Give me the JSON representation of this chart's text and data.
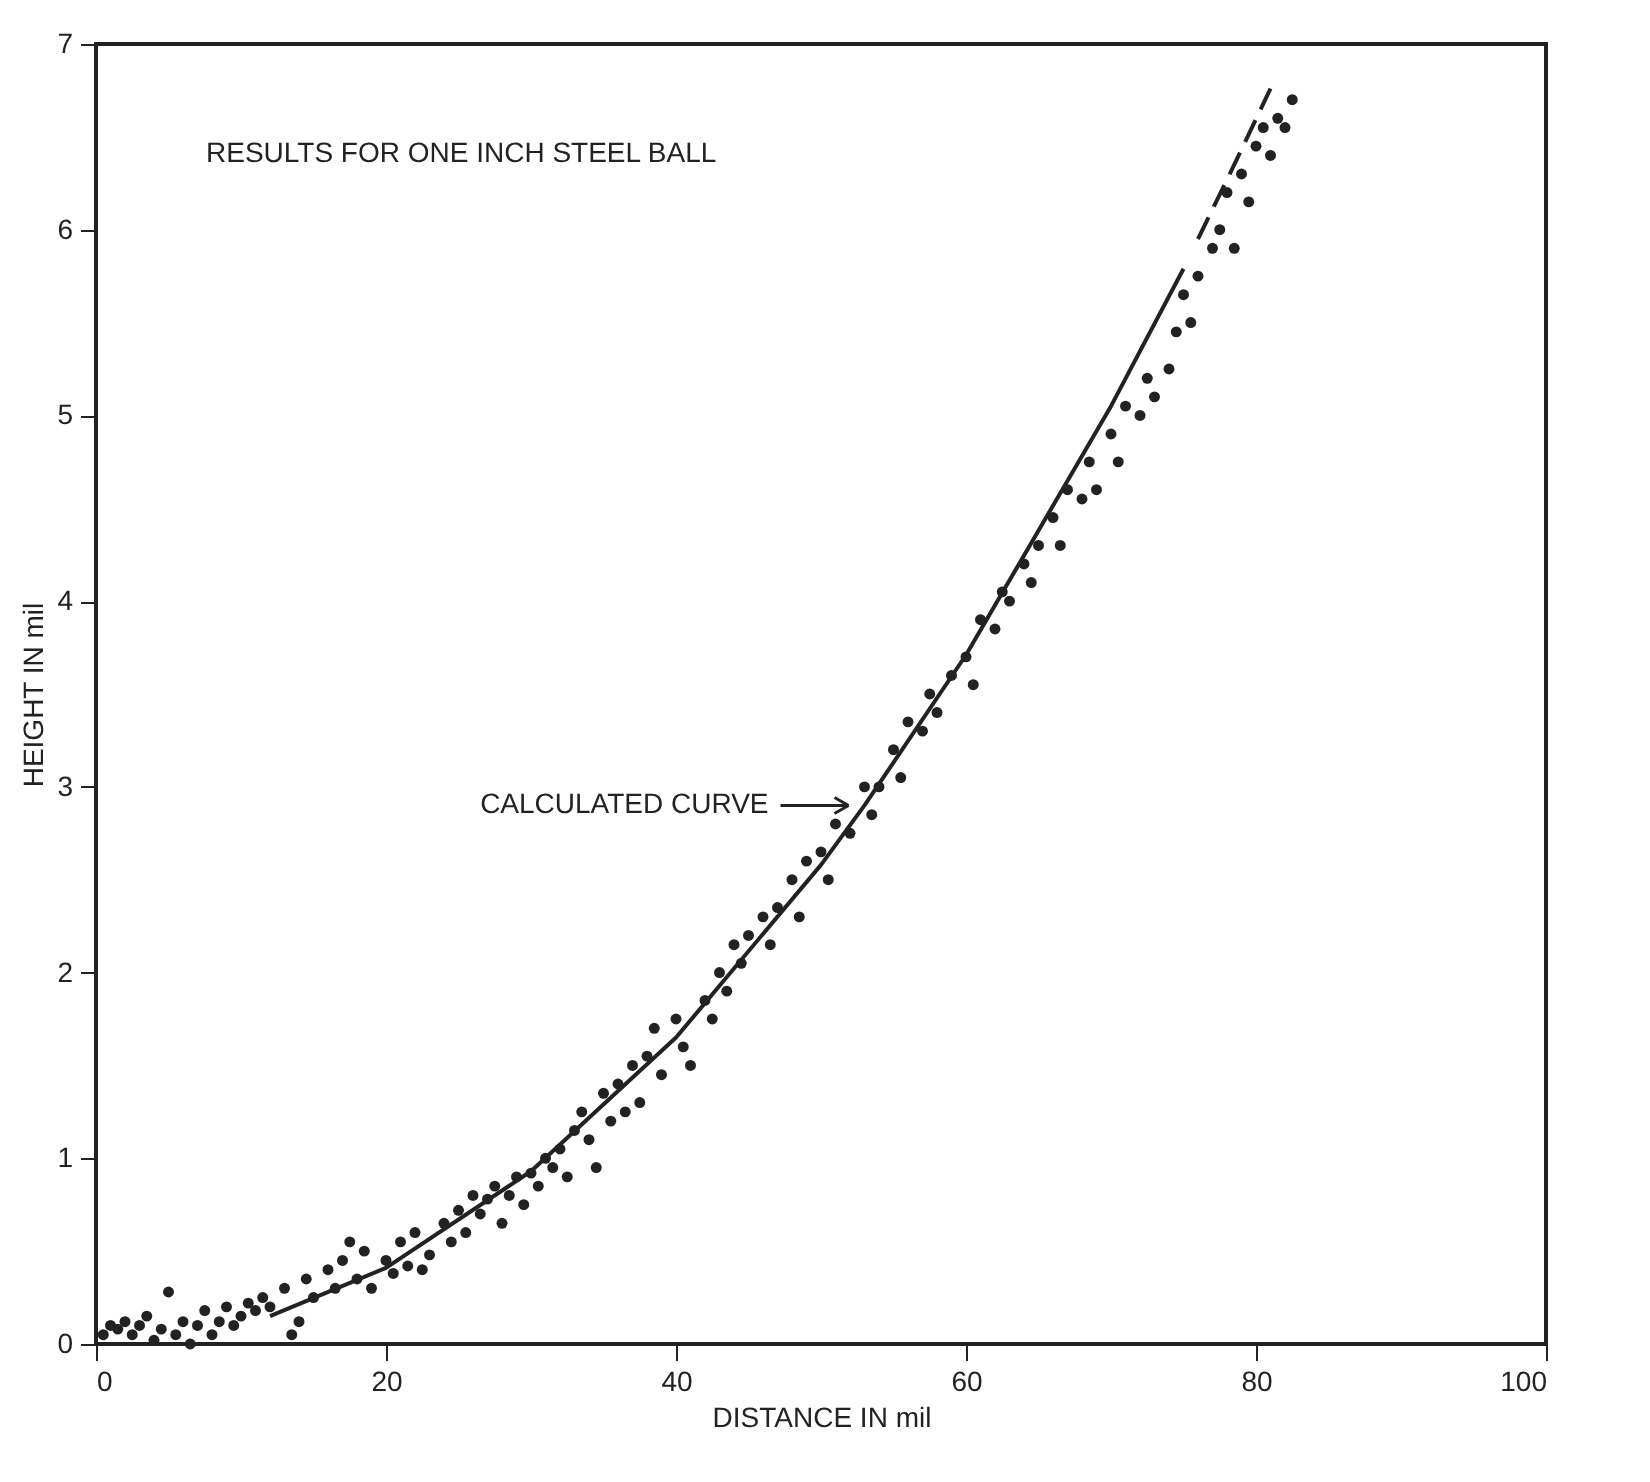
{
  "chart_data": {
    "type": "scatter",
    "xlabel": "DISTANCE IN mil",
    "ylabel": "HEIGHT IN mil",
    "annotations": [
      "RESULTS FOR ONE INCH STEEL BALL"
    ],
    "xlim": [
      0,
      100
    ],
    "ylim": [
      0,
      7
    ],
    "xticks": [
      0,
      20,
      40,
      60,
      80,
      100
    ],
    "yticks": [
      0,
      1,
      2,
      3,
      4,
      5,
      6,
      7
    ],
    "grid": false,
    "series": [
      {
        "color": "#222222",
        "marker": "circle",
        "x": [
          0.5,
          1,
          1.5,
          2,
          2.5,
          3,
          3.5,
          4,
          4.5,
          5,
          5.5,
          6,
          6.5,
          7,
          7.5,
          8,
          8.5,
          9,
          9.5,
          10,
          10.5,
          11,
          11.5,
          12,
          13,
          13.5,
          14,
          14.5,
          15,
          16,
          16.5,
          17,
          17.5,
          18,
          18.5,
          19,
          20,
          20.5,
          21,
          21.5,
          22,
          22.5,
          23,
          24,
          24.5,
          25,
          25.5,
          26,
          26.5,
          27,
          27.5,
          28,
          28.5,
          29,
          29.5,
          30,
          30.5,
          31,
          31.5,
          32,
          32.5,
          33,
          33.5,
          34,
          34.5,
          35,
          35.5,
          36,
          36.5,
          37,
          37.5,
          38,
          38.5,
          39,
          40,
          40.5,
          41,
          42,
          42.5,
          43,
          43.5,
          44,
          44.5,
          45,
          46,
          46.5,
          47,
          48,
          48.5,
          49,
          50,
          50.5,
          51,
          52,
          53,
          53.5,
          54,
          55,
          55.5,
          56,
          57,
          57.5,
          58,
          59,
          60,
          60.5,
          61,
          62,
          62.5,
          63,
          64,
          64.5,
          65,
          66,
          66.5,
          67,
          68,
          68.5,
          69,
          70,
          70.5,
          71,
          72,
          72.5,
          73,
          74,
          74.5,
          75,
          75.5,
          76,
          77,
          77.5,
          78,
          78.5,
          79,
          79.5,
          80,
          80.5,
          81,
          81.5,
          82,
          82.5
        ],
        "values": [
          0.05,
          0.1,
          0.08,
          0.12,
          0.05,
          0.1,
          0.15,
          0.02,
          0.08,
          0.28,
          0.05,
          0.12,
          0.0,
          0.1,
          0.18,
          0.05,
          0.12,
          0.2,
          0.1,
          0.15,
          0.22,
          0.18,
          0.25,
          0.2,
          0.3,
          0.05,
          0.12,
          0.35,
          0.25,
          0.4,
          0.3,
          0.45,
          0.55,
          0.35,
          0.5,
          0.3,
          0.45,
          0.38,
          0.55,
          0.42,
          0.6,
          0.4,
          0.48,
          0.65,
          0.55,
          0.72,
          0.6,
          0.8,
          0.7,
          0.78,
          0.85,
          0.65,
          0.8,
          0.9,
          0.75,
          0.92,
          0.85,
          1.0,
          0.95,
          1.05,
          0.9,
          1.15,
          1.25,
          1.1,
          0.95,
          1.35,
          1.2,
          1.4,
          1.25,
          1.5,
          1.3,
          1.55,
          1.7,
          1.45,
          1.75,
          1.6,
          1.5,
          1.85,
          1.75,
          2.0,
          1.9,
          2.15,
          2.05,
          2.2,
          2.3,
          2.15,
          2.35,
          2.5,
          2.3,
          2.6,
          2.65,
          2.5,
          2.8,
          2.75,
          3.0,
          2.85,
          3.0,
          3.2,
          3.05,
          3.35,
          3.3,
          3.5,
          3.4,
          3.6,
          3.7,
          3.55,
          3.9,
          3.85,
          4.05,
          4.0,
          4.2,
          4.1,
          4.3,
          4.45,
          4.3,
          4.6,
          4.55,
          4.75,
          4.6,
          4.9,
          4.75,
          5.05,
          5.0,
          5.2,
          5.1,
          5.25,
          5.45,
          5.65,
          5.5,
          5.75,
          5.9,
          6.0,
          6.2,
          5.9,
          6.3,
          6.15,
          6.45,
          6.55,
          6.4,
          6.6,
          6.55,
          6.7
        ]
      },
      {
        "type": "line",
        "name": "CALCULATED CURVE",
        "color": "#222222",
        "line_style": "solid",
        "x": [
          12,
          20,
          30,
          40,
          50,
          53,
          60,
          70,
          75
        ],
        "values": [
          0.15,
          0.41,
          0.93,
          1.65,
          2.58,
          2.9,
          3.71,
          5.05,
          5.79
        ]
      },
      {
        "type": "line",
        "color": "#222222",
        "line_style": "dashed",
        "x": [
          76,
          78.5,
          81
        ],
        "values": [
          5.95,
          6.35,
          6.76
        ]
      }
    ]
  }
}
